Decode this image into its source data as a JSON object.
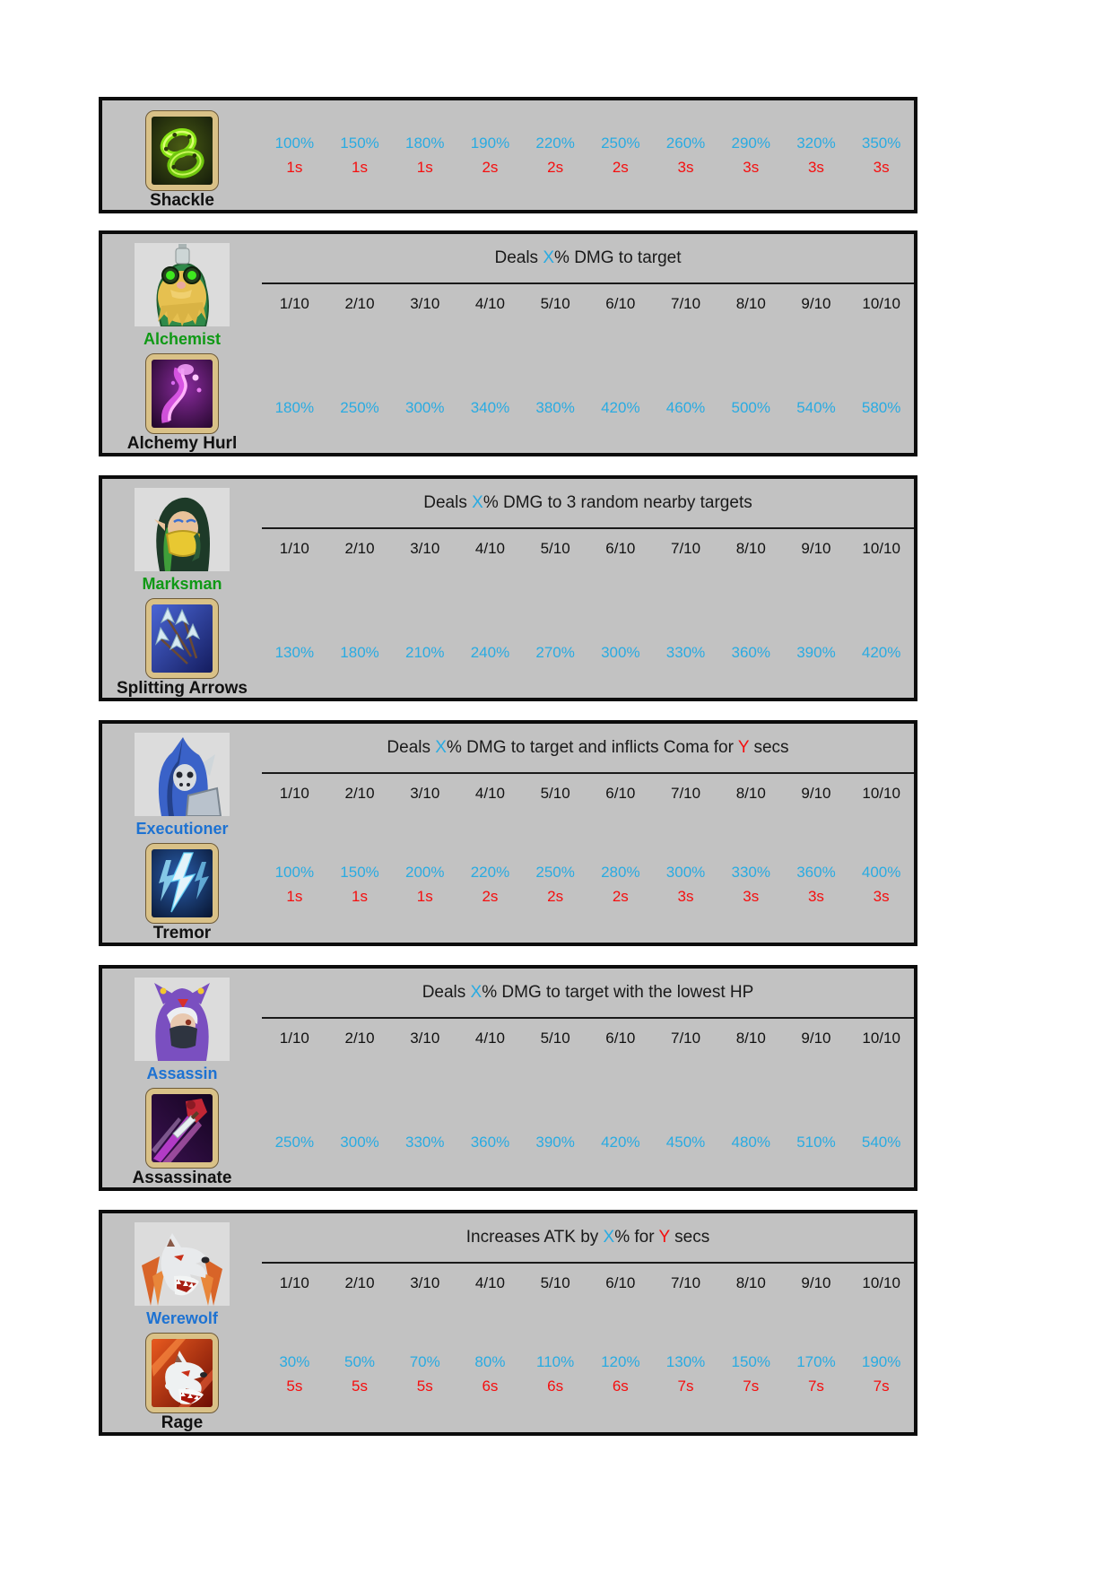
{
  "document": {
    "background": "#ffffff",
    "kind": "hero-skill-reference-sheet"
  },
  "colors": {
    "panel_bg": "#c2c2c2",
    "panel_border": "#0c0c0c",
    "portrait_bg": "#dcdcdc",
    "frame_wood": "#d9c187",
    "value_cyan": "#29abe2",
    "duration_red": "#f50e0e",
    "hero_name_green": "#0f9915",
    "hero_name_blue": "#1d72d2"
  },
  "levels": [
    "1/10",
    "2/10",
    "3/10",
    "4/10",
    "5/10",
    "6/10",
    "7/10",
    "8/10",
    "9/10",
    "10/10"
  ],
  "panels": [
    {
      "partial": true,
      "skill": {
        "name": "Shackle",
        "icon": "shackle-icon"
      },
      "values": [
        "100%",
        "150%",
        "180%",
        "190%",
        "220%",
        "250%",
        "260%",
        "290%",
        "320%",
        "350%"
      ],
      "durations": [
        "1s",
        "1s",
        "1s",
        "2s",
        "2s",
        "2s",
        "3s",
        "3s",
        "3s",
        "3s"
      ]
    },
    {
      "hero": {
        "name": "Alchemist",
        "name_color": "green",
        "portrait": "alchemist-portrait"
      },
      "description": [
        {
          "text": "Deals ",
          "color": "black"
        },
        {
          "text": "X",
          "color": "cyan"
        },
        {
          "text": "% DMG to target",
          "color": "black"
        }
      ],
      "skill": {
        "name": "Alchemy Hurl",
        "icon": "alchemy-hurl-icon"
      },
      "values": [
        "180%",
        "250%",
        "300%",
        "340%",
        "380%",
        "420%",
        "460%",
        "500%",
        "540%",
        "580%"
      ],
      "durations": null
    },
    {
      "hero": {
        "name": "Marksman",
        "name_color": "green",
        "portrait": "marksman-portrait"
      },
      "description": [
        {
          "text": "Deals ",
          "color": "black"
        },
        {
          "text": "X",
          "color": "cyan"
        },
        {
          "text": "% DMG to 3 random nearby targets",
          "color": "black"
        }
      ],
      "skill": {
        "name": "Splitting Arrows",
        "icon": "splitting-arrows-icon"
      },
      "values": [
        "130%",
        "180%",
        "210%",
        "240%",
        "270%",
        "300%",
        "330%",
        "360%",
        "390%",
        "420%"
      ],
      "durations": null
    },
    {
      "hero": {
        "name": "Executioner",
        "name_color": "blue",
        "portrait": "executioner-portrait"
      },
      "description": [
        {
          "text": "Deals ",
          "color": "black"
        },
        {
          "text": "X",
          "color": "cyan"
        },
        {
          "text": "% DMG to target and inflicts Coma for ",
          "color": "black"
        },
        {
          "text": "Y",
          "color": "red"
        },
        {
          "text": " secs",
          "color": "black"
        }
      ],
      "skill": {
        "name": "Tremor",
        "icon": "tremor-icon"
      },
      "values": [
        "100%",
        "150%",
        "200%",
        "220%",
        "250%",
        "280%",
        "300%",
        "330%",
        "360%",
        "400%"
      ],
      "durations": [
        "1s",
        "1s",
        "1s",
        "2s",
        "2s",
        "2s",
        "3s",
        "3s",
        "3s",
        "3s"
      ]
    },
    {
      "hero": {
        "name": "Assassin",
        "name_color": "blue",
        "portrait": "assassin-portrait"
      },
      "description": [
        {
          "text": "Deals ",
          "color": "black"
        },
        {
          "text": "X",
          "color": "cyan"
        },
        {
          "text": "% DMG to target with the lowest HP",
          "color": "black"
        }
      ],
      "skill": {
        "name": "Assassinate",
        "icon": "assassinate-icon"
      },
      "values": [
        "250%",
        "300%",
        "330%",
        "360%",
        "390%",
        "420%",
        "450%",
        "480%",
        "510%",
        "540%"
      ],
      "durations": null
    },
    {
      "hero": {
        "name": "Werewolf",
        "name_color": "blue",
        "portrait": "werewolf-portrait"
      },
      "description": [
        {
          "text": "Increases ATK by ",
          "color": "black"
        },
        {
          "text": "X",
          "color": "cyan"
        },
        {
          "text": "% for ",
          "color": "black"
        },
        {
          "text": "Y",
          "color": "red"
        },
        {
          "text": " secs",
          "color": "black"
        }
      ],
      "skill": {
        "name": "Rage",
        "icon": "rage-icon"
      },
      "values": [
        "30%",
        "50%",
        "70%",
        "80%",
        "110%",
        "120%",
        "130%",
        "150%",
        "170%",
        "190%"
      ],
      "durations": [
        "5s",
        "5s",
        "5s",
        "6s",
        "6s",
        "6s",
        "7s",
        "7s",
        "7s",
        "7s"
      ]
    }
  ]
}
